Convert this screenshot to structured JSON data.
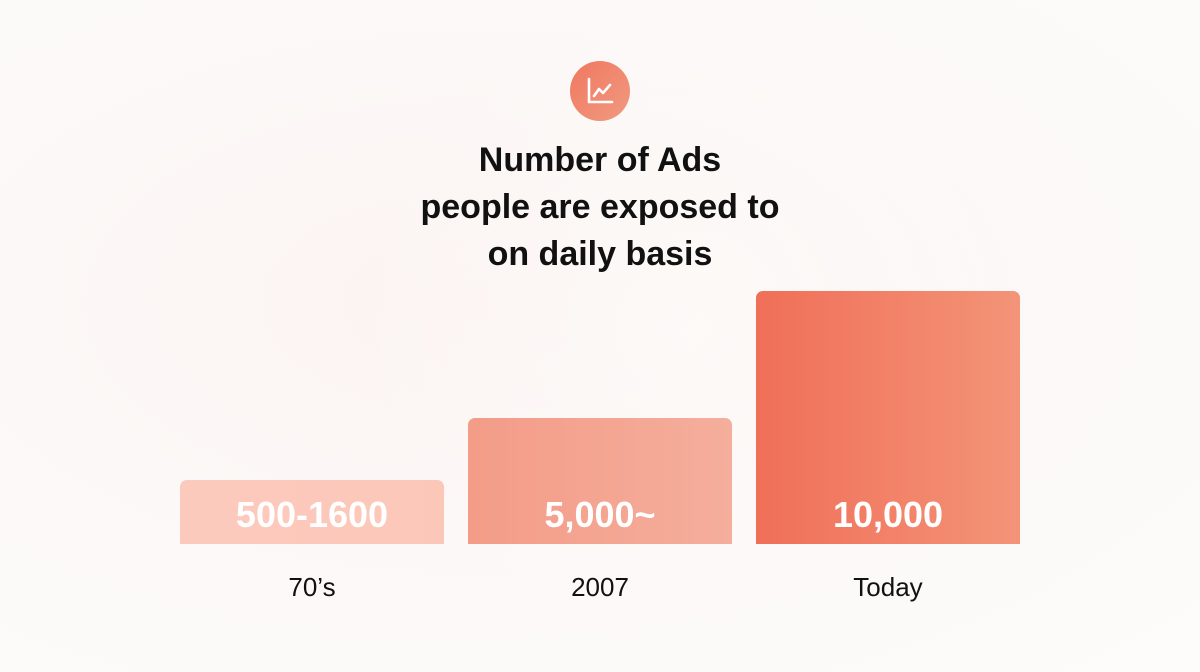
{
  "header": {
    "icon": "line-chart-icon",
    "title_lines": [
      "Number of Ads",
      "people are exposed to",
      "on daily basis"
    ]
  },
  "chart_data": {
    "type": "bar",
    "title": "Number of Ads people are exposed to on daily basis",
    "categories": [
      "70’s",
      "2007",
      "Today"
    ],
    "value_labels": [
      "500-1600",
      "5,000~",
      "10,000"
    ],
    "values": [
      1600,
      5000,
      10000
    ],
    "ylim": [
      0,
      10000
    ],
    "grid": false,
    "legend": "none",
    "bar_colors": [
      [
        "#fccabd",
        "#fbc7b9"
      ],
      [
        "#f39c88",
        "#f5ae9c"
      ],
      [
        "#f06f58",
        "#f39478"
      ]
    ],
    "accent": "#f07860"
  }
}
